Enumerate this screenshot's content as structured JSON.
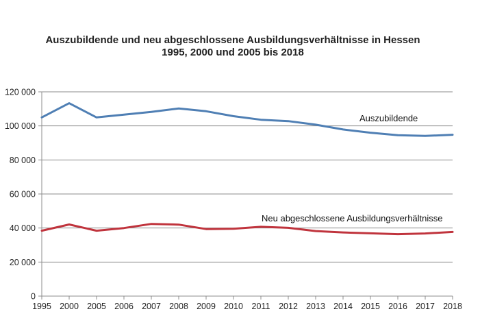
{
  "chart_data": {
    "type": "line",
    "title_line1": "Auszubildende und neu abgeschlossene Ausbildungsverhältnisse in Hessen",
    "title_line2": "1995, 2000 und 2005 bis 2018",
    "categories": [
      "1995",
      "2000",
      "2005",
      "2006",
      "2007",
      "2008",
      "2009",
      "2010",
      "2011",
      "2012",
      "2013",
      "2014",
      "2015",
      "2016",
      "2017",
      "2018"
    ],
    "ylim": [
      0,
      120000
    ],
    "yticks": [
      {
        "value": 0,
        "label": "0"
      },
      {
        "value": 20000,
        "label": "20 000"
      },
      {
        "value": 40000,
        "label": "40 000"
      },
      {
        "value": 60000,
        "label": "60 000"
      },
      {
        "value": 80000,
        "label": "80 000"
      },
      {
        "value": 100000,
        "label": "100 000"
      },
      {
        "value": 120000,
        "label": "120 000"
      }
    ],
    "grid": true,
    "series": [
      {
        "name": "Auszubildende",
        "color": "#4f7fb4",
        "values": [
          105000,
          113300,
          105000,
          106600,
          108200,
          110200,
          108600,
          105700,
          103600,
          102800,
          100700,
          97900,
          96000,
          94500,
          94100,
          94800
        ]
      },
      {
        "name": "Neu abgeschlossene Ausbildungsverhältnisse",
        "color": "#c0343d",
        "values": [
          38400,
          42100,
          38400,
          40000,
          42400,
          42000,
          39400,
          39600,
          40700,
          40100,
          38200,
          37400,
          36900,
          36400,
          36800,
          37700
        ]
      }
    ]
  }
}
